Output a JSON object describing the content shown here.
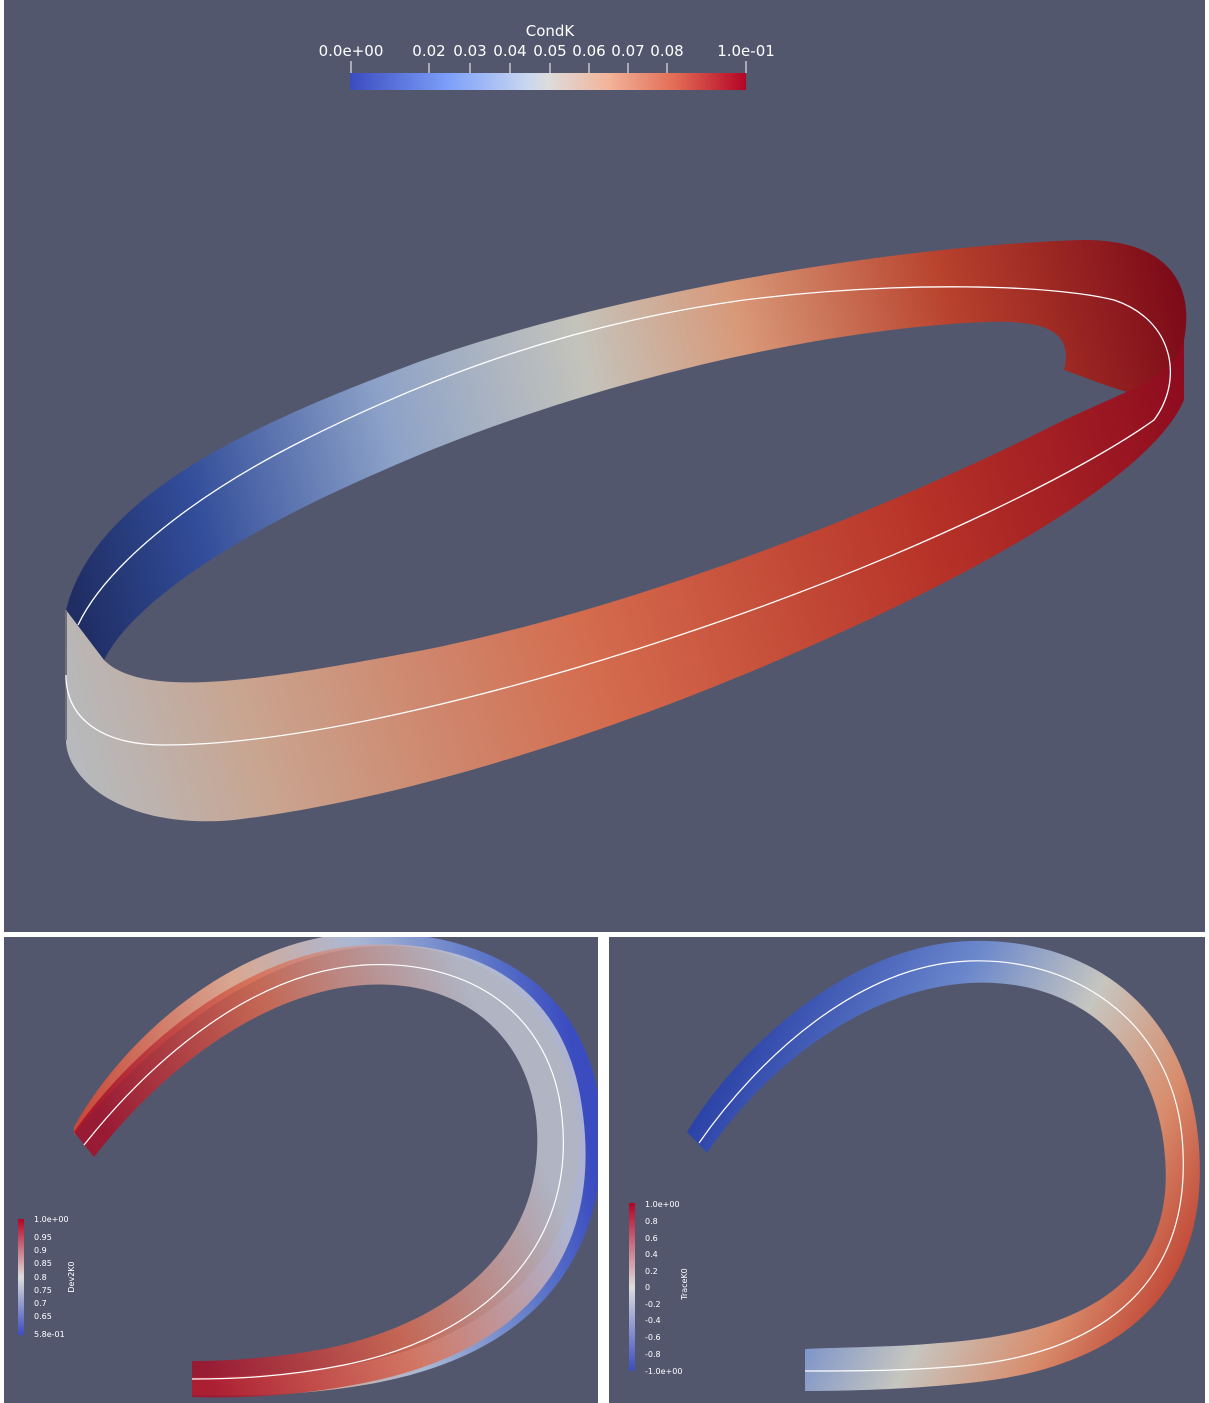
{
  "views": [
    {
      "colorbar": {
        "title": "CondK",
        "min_label": "0.0e+00",
        "max_label": "1.0e-01",
        "ticks": [
          "0.02",
          "0.03",
          "0.04",
          "0.05",
          "0.06",
          "0.07",
          "0.08"
        ]
      }
    },
    {
      "colorbar": {
        "title": "Dev2K0",
        "max_label": "1.0e+00",
        "min_label": "5.8e-01",
        "ticks": [
          "0.95",
          "0.9",
          "0.85",
          "0.8",
          "0.75",
          "0.7",
          "0.65"
        ]
      }
    },
    {
      "colorbar": {
        "title": "TraceK0",
        "max_label": "1.0e+00",
        "min_label": "-1.0e+00",
        "ticks": [
          "0.8",
          "0.6",
          "0.4",
          "0.2",
          "0",
          "-0.2",
          "-0.4",
          "-0.6",
          "-0.8"
        ]
      }
    }
  ],
  "colors": {
    "background": "#52576e",
    "cool_to_warm": [
      "#3b4cc0",
      "#dddddd",
      "#b40426"
    ]
  }
}
